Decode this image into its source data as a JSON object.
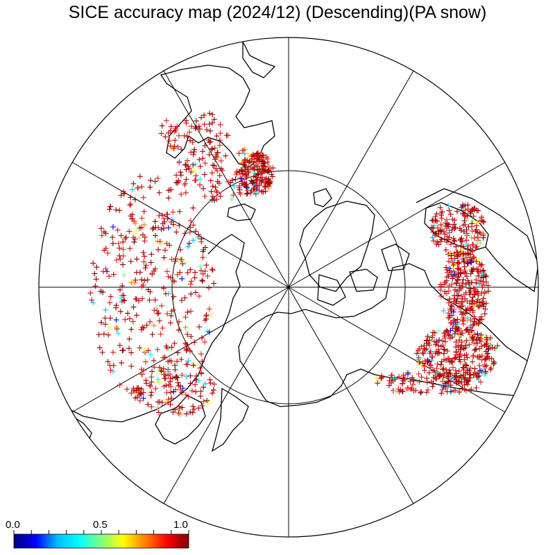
{
  "title": "SICE accuracy map (2024/12) (Descending)(PA snow)",
  "colorbar": {
    "labels": [
      "0.0",
      "0.5",
      "1.0"
    ],
    "stops": [
      "#000080",
      "#0000ff",
      "#00bfff",
      "#00ffff",
      "#80ff80",
      "#ffff00",
      "#ff8000",
      "#ff0000",
      "#800000"
    ]
  },
  "projection": {
    "type": "north polar stereographic",
    "meridian_spacing_deg": 30,
    "inner_latitude_circle": true
  },
  "marker": {
    "symbol": "+",
    "dominant_color": "#a00000"
  }
}
